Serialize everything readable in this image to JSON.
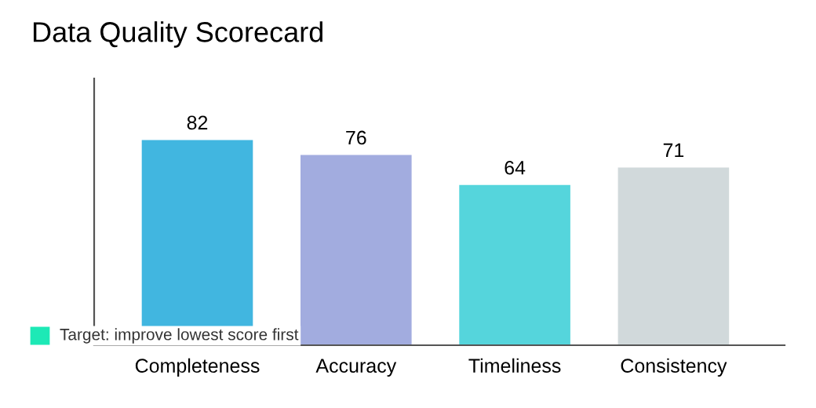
{
  "chart_data": {
    "type": "bar",
    "title": "Data Quality Scorecard",
    "categories": [
      "Completeness",
      "Accuracy",
      "Timeliness",
      "Consistency"
    ],
    "values": [
      82,
      76,
      64,
      71
    ],
    "colors": [
      "#41b6e0",
      "#a2acdf",
      "#55d5dc",
      "#d1d9db"
    ],
    "data_labels": true,
    "grid": false,
    "annotations": [
      "Target: improve lowest score first"
    ]
  }
}
